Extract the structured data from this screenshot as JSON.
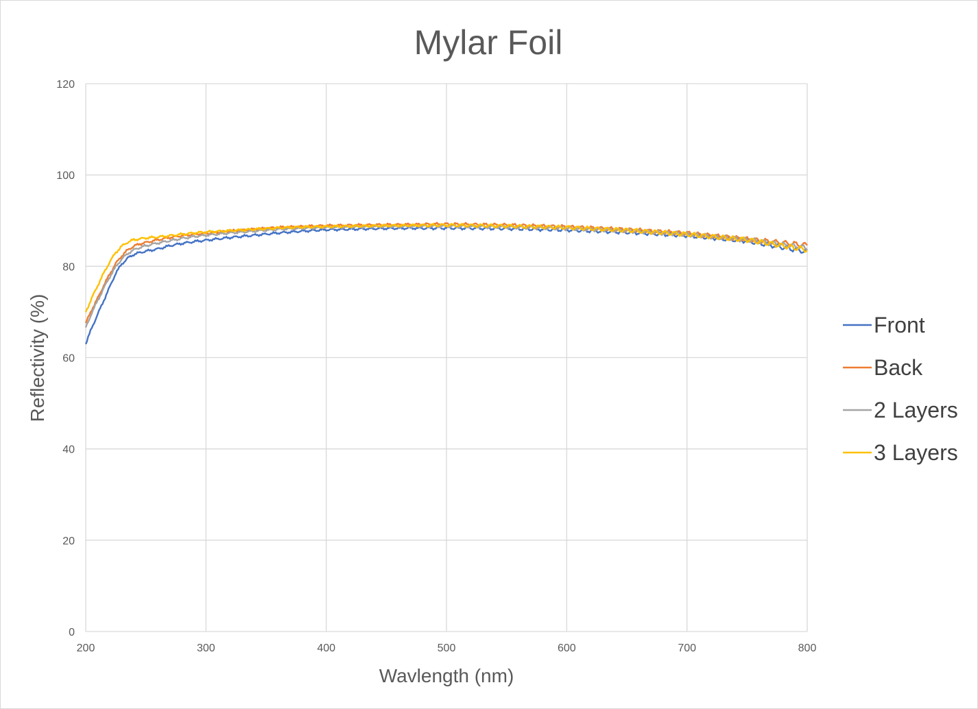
{
  "chart_data": {
    "type": "line",
    "title": "Mylar Foil",
    "xlabel": "Wavlength (nm)",
    "ylabel": "Reflectivity (%)",
    "xlim": [
      200,
      800
    ],
    "ylim": [
      0,
      120
    ],
    "xticks": [
      200,
      300,
      400,
      500,
      600,
      700,
      800
    ],
    "yticks": [
      0,
      20,
      40,
      60,
      80,
      100,
      120
    ],
    "grid": true,
    "legend_position": "right",
    "series": [
      {
        "name": "Front",
        "color": "#4472C4",
        "x": [
          200,
          205,
          210,
          215,
          220,
          225,
          230,
          235,
          240,
          245,
          250,
          260,
          270,
          280,
          290,
          300,
          320,
          340,
          360,
          380,
          400,
          450,
          500,
          550,
          600,
          650,
          700,
          750,
          800
        ],
        "y": [
          63.0,
          66.5,
          69.5,
          72.5,
          75.5,
          78.5,
          80.5,
          81.8,
          82.6,
          83.0,
          83.3,
          83.8,
          84.5,
          85.0,
          85.4,
          85.7,
          86.3,
          86.8,
          87.3,
          87.7,
          88.0,
          88.3,
          88.4,
          88.3,
          88.0,
          87.5,
          86.8,
          85.6,
          83.2
        ]
      },
      {
        "name": "Back",
        "color": "#ED7D31",
        "x": [
          200,
          205,
          210,
          215,
          220,
          225,
          230,
          235,
          240,
          245,
          250,
          260,
          270,
          280,
          290,
          300,
          320,
          340,
          360,
          380,
          400,
          450,
          500,
          550,
          600,
          650,
          700,
          750,
          800
        ],
        "y": [
          67.5,
          70.5,
          73.0,
          75.8,
          78.3,
          80.6,
          82.3,
          83.6,
          84.4,
          84.9,
          85.2,
          85.8,
          86.3,
          86.7,
          87.0,
          87.2,
          87.7,
          88.1,
          88.5,
          88.7,
          88.9,
          89.1,
          89.2,
          89.0,
          88.6,
          88.0,
          87.2,
          85.9,
          84.6
        ]
      },
      {
        "name": "2 Layers",
        "color": "#A5A5A5",
        "x": [
          200,
          205,
          210,
          215,
          220,
          225,
          230,
          235,
          240,
          245,
          250,
          260,
          270,
          280,
          290,
          300,
          320,
          340,
          360,
          380,
          400,
          450,
          500,
          550,
          600,
          650,
          700,
          750,
          800
        ],
        "y": [
          66.5,
          69.8,
          72.5,
          75.2,
          77.7,
          79.9,
          81.6,
          82.8,
          83.6,
          84.1,
          84.5,
          85.1,
          85.6,
          86.1,
          86.5,
          86.8,
          87.3,
          87.7,
          88.1,
          88.3,
          88.5,
          88.7,
          88.8,
          88.6,
          88.3,
          87.8,
          87.0,
          85.8,
          84.0
        ]
      },
      {
        "name": "3 Layers",
        "color": "#FFC000",
        "x": [
          200,
          205,
          210,
          215,
          220,
          225,
          230,
          235,
          240,
          245,
          250,
          260,
          270,
          280,
          290,
          300,
          320,
          340,
          360,
          380,
          400,
          450,
          500,
          550,
          600,
          650,
          700,
          750,
          800
        ],
        "y": [
          70.0,
          73.0,
          75.8,
          78.5,
          81.0,
          83.0,
          84.4,
          85.3,
          85.8,
          86.0,
          86.2,
          86.4,
          86.7,
          87.0,
          87.3,
          87.5,
          87.8,
          88.1,
          88.4,
          88.6,
          88.7,
          88.9,
          89.0,
          88.8,
          88.5,
          87.9,
          87.0,
          85.8,
          83.6
        ]
      }
    ]
  }
}
